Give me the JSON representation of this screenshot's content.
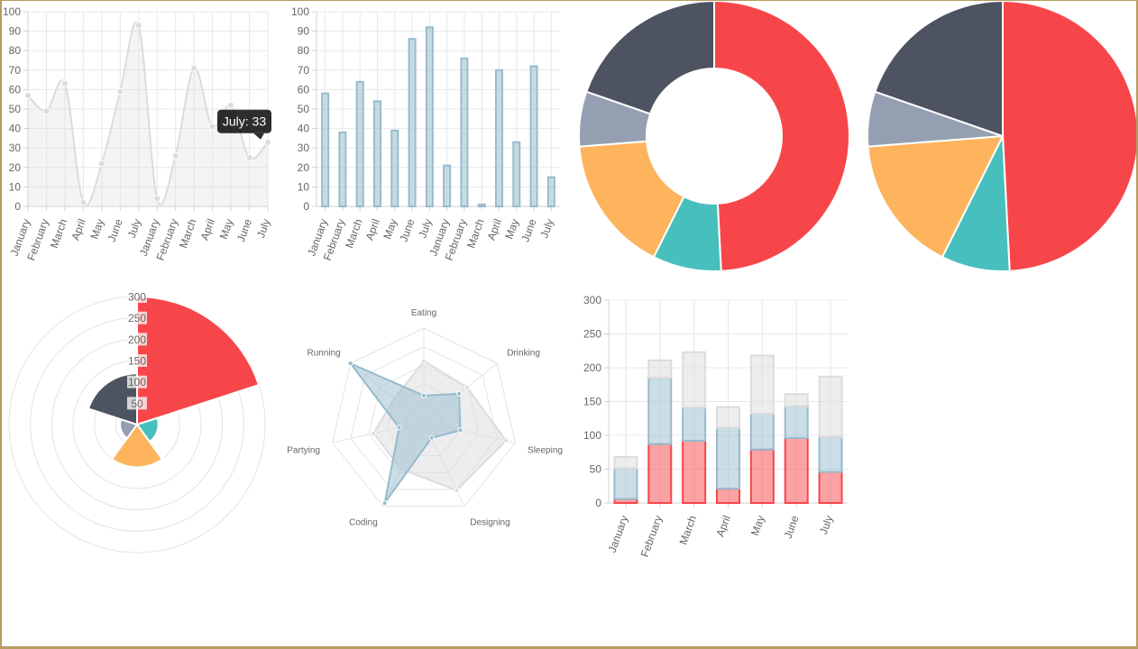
{
  "colors": {
    "red": "#F7464A",
    "teal": "#46BFBD",
    "yellow": "#FDB45C",
    "grey": "#949FB1",
    "dark": "#4D5360",
    "blue_fill": "rgba(151,187,205,0.5)",
    "blue_stroke": "#97BBCD",
    "grey_fill": "rgba(220,220,220,0.5)",
    "grid": "#e8e8e8"
  },
  "chart_data": [
    {
      "type": "line",
      "categories": [
        "January",
        "February",
        "March",
        "April",
        "May",
        "June",
        "July",
        "January",
        "February",
        "March",
        "April",
        "May",
        "June",
        "July"
      ],
      "values": [
        57,
        49,
        63,
        2,
        22,
        59,
        93,
        4,
        26,
        71,
        41,
        52,
        25,
        33
      ],
      "ylim": [
        0,
        100
      ],
      "yticks": [
        "0",
        "10",
        "20",
        "30",
        "40",
        "50",
        "60",
        "70",
        "80",
        "90",
        "100"
      ],
      "tooltip": {
        "category_index": 13,
        "text": "July: 33"
      }
    },
    {
      "type": "bar",
      "categories": [
        "January",
        "February",
        "March",
        "April",
        "May",
        "June",
        "July",
        "January",
        "February",
        "March",
        "April",
        "May",
        "June",
        "July"
      ],
      "values": [
        58,
        38,
        64,
        54,
        39,
        86,
        92,
        21,
        76,
        1,
        70,
        33,
        72,
        15
      ],
      "ylim": [
        0,
        100
      ],
      "yticks": [
        "0",
        "10",
        "20",
        "30",
        "40",
        "50",
        "60",
        "70",
        "80",
        "90",
        "100"
      ]
    },
    {
      "type": "doughnut",
      "values": [
        300,
        50,
        100,
        40,
        120
      ],
      "colors": [
        "#F7464A",
        "#46BFBD",
        "#FDB45C",
        "#949FB1",
        "#4D5360"
      ]
    },
    {
      "type": "pie",
      "values": [
        300,
        50,
        100,
        40,
        120
      ],
      "colors": [
        "#F7464A",
        "#46BFBD",
        "#FDB45C",
        "#949FB1",
        "#4D5360"
      ]
    },
    {
      "type": "polarArea",
      "values": [
        300,
        50,
        100,
        40,
        120
      ],
      "colors": [
        "#F7464A",
        "#46BFBD",
        "#FDB45C",
        "#949FB1",
        "#4D5360"
      ],
      "rmax": 300,
      "rticks": [
        "50",
        "100",
        "150",
        "200",
        "250",
        "300"
      ]
    },
    {
      "type": "radar",
      "labels": [
        "Eating",
        "Drinking",
        "Sleeping",
        "Designing",
        "Coding",
        "Partying",
        "Running"
      ],
      "rmax": 100,
      "series": [
        {
          "values": [
            65,
            59,
            90,
            81,
            56,
            55,
            40
          ]
        },
        {
          "values": [
            28,
            48,
            40,
            19,
            96,
            27,
            100
          ]
        }
      ]
    },
    {
      "type": "bar",
      "stacked": true,
      "categories": [
        "January",
        "February",
        "March",
        "April",
        "May",
        "June",
        "July"
      ],
      "series": [
        {
          "values": [
            6,
            87,
            92,
            21,
            79,
            96,
            46
          ]
        },
        {
          "values": [
            45,
            98,
            49,
            90,
            53,
            47,
            52
          ]
        },
        {
          "values": [
            17,
            26,
            82,
            31,
            86,
            18,
            89
          ]
        }
      ],
      "ylim": [
        0,
        300
      ],
      "yticks": [
        "0",
        "50",
        "100",
        "150",
        "200",
        "250",
        "300"
      ]
    }
  ]
}
